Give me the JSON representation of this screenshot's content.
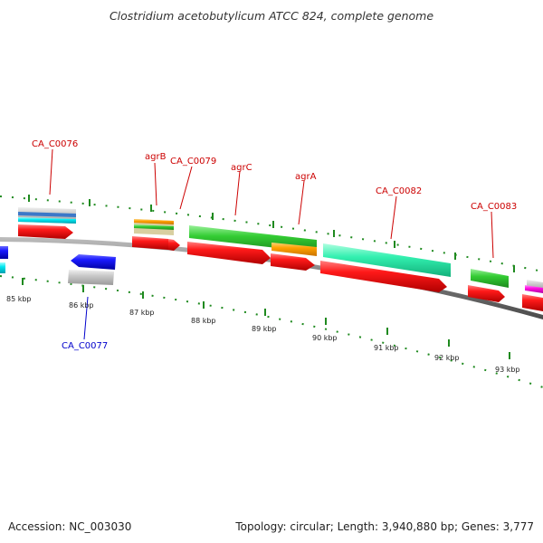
{
  "map": {
    "title": "Clostridium acetobutylicum ATCC 824, complete genome",
    "accession": "Accession: NC_003030",
    "stats": "Topology: circular; Length: 3,940,880 bp; Genes: 3,777"
  },
  "colors": {
    "backbone": "#7a7a7a",
    "tick": "#1f8a1f",
    "label_forward": "#cc0000",
    "label_reverse": "#0000cc"
  },
  "axis": {
    "tick_labels": [
      "85 kbp",
      "86 kbp",
      "87 kbp",
      "88 kbp",
      "89 kbp",
      "90 kbp",
      "91 kbp",
      "92 kbp",
      "93 kbp"
    ]
  },
  "genes": [
    {
      "name": "CA_C0076",
      "strand": "forward",
      "color": "#cc0000"
    },
    {
      "name": "CA_C0077",
      "strand": "reverse",
      "color": "#0000cc"
    },
    {
      "name": "agrB",
      "strand": "forward",
      "color": "#cc0000"
    },
    {
      "name": "CA_C0079",
      "strand": "forward",
      "color": "#cc0000"
    },
    {
      "name": "agrC",
      "strand": "forward",
      "color": "#cc0000"
    },
    {
      "name": "agrA",
      "strand": "forward",
      "color": "#cc0000"
    },
    {
      "name": "CA_C0082",
      "strand": "forward",
      "color": "#cc0000"
    },
    {
      "name": "CA_C0083",
      "strand": "forward",
      "color": "#cc0000"
    }
  ]
}
